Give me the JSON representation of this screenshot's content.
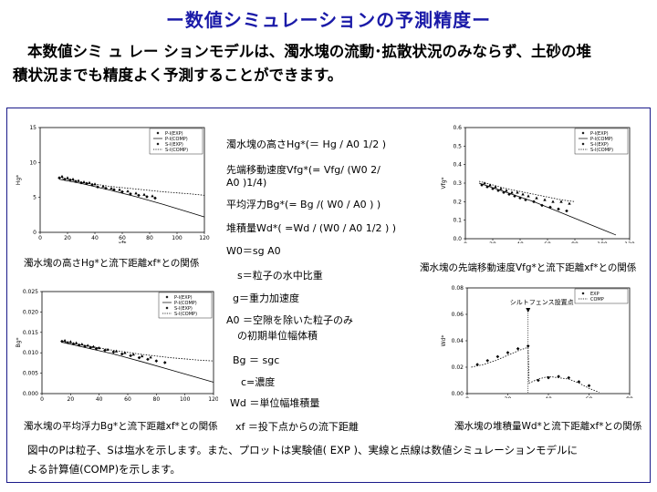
{
  "page": {
    "title": "ー数値シミュレーションの予測精度ー",
    "intro_line1": "本数値シミ ュ レー ションモデルは、濁水塊の流動･拡散状況のみならず、土砂の堆",
    "intro_line2": "積状況までも精度よく予測することができます。"
  },
  "definitions": [
    "濁水塊の高さHg*(＝ Hg / A0 1/2 )",
    "先端移動速度Vfg*(= Vfg/ (W0 2/",
    "A0 )1/4)",
    "平均浮力Bg*(= Bg /( W0 / A0 ) )",
    "堆積量Wd*( =Wd / (W0 / A0 1/2 ) )",
    "W0＝sg A0",
    "s＝粒子の水中比重",
    "g＝重力加速度",
    "A0 ＝空隙を除いた粒子のみ",
    "の初期単位幅体積",
    "Bg ＝ sgc",
    "c=濃度",
    "Wd ＝単位幅堆積量",
    "xf ＝投下点からの流下距離"
  ],
  "captions": {
    "tl": "濁水塊の高さHg*と流下距離xf*との関係",
    "tr": "濁水塊の先端移動速度Vfg*と流下距離xf*との関係",
    "bl": "濁水塊の平均浮力Bg*と流下距離xf*との関係",
    "br": "濁水塊の堆積量Wd*と流下距離xf*との関係"
  },
  "footnote": {
    "line1": "図中のPは粒子、Sは塩水を示します。また、プロットは実験値( EXP )、実線と点線は数値シミュレーションモデルに",
    "line2": "よる計算値(COMP)を示します。"
  },
  "chart_data": [
    {
      "type": "line",
      "ylabel": "Hg*",
      "xlabel": "xf*",
      "xlim": [
        0,
        120
      ],
      "ylim": [
        0,
        15
      ],
      "xticks": [
        "0",
        "20",
        "40",
        "60",
        "80",
        "100",
        "120"
      ],
      "yticks": [
        "0",
        "5",
        "10",
        "15"
      ],
      "legend": [
        "P-l(EXP)",
        "P-l(COMP)",
        "S-l(EXP)",
        "S-l(COMP)"
      ],
      "legend_position": "top-right",
      "series": [
        {
          "name": "P-l(EXP)",
          "style": "diamond",
          "x": [
            14,
            18,
            22,
            26,
            30,
            34,
            38,
            42,
            48,
            54,
            60,
            66,
            72,
            78,
            84
          ],
          "y": [
            7.8,
            7.6,
            7.5,
            7.3,
            7.1,
            7.0,
            6.8,
            6.5,
            6.3,
            6.1,
            5.8,
            5.5,
            5.3,
            5.1,
            4.9
          ]
        },
        {
          "name": "P-l(COMP)",
          "style": "solid",
          "x": [
            14,
            30,
            50,
            70,
            90,
            110,
            120
          ],
          "y": [
            7.6,
            7.0,
            6.1,
            5.1,
            4.0,
            2.8,
            2.2
          ]
        },
        {
          "name": "S-l(EXP)",
          "style": "triangle",
          "x": [
            16,
            20,
            24,
            28,
            32,
            36,
            40,
            46,
            52,
            58,
            64,
            70,
            76,
            82
          ],
          "y": [
            8.0,
            7.8,
            7.6,
            7.4,
            7.2,
            7.1,
            6.9,
            6.6,
            6.3,
            6.1,
            5.9,
            5.6,
            5.4,
            5.2
          ]
        },
        {
          "name": "S-l(COMP)",
          "style": "dotted",
          "x": [
            14,
            30,
            50,
            70,
            90,
            110,
            120
          ],
          "y": [
            7.8,
            7.2,
            6.6,
            6.2,
            5.8,
            5.5,
            5.3
          ]
        }
      ]
    },
    {
      "type": "line",
      "ylabel": "Vfg*",
      "xlabel": "xf*",
      "xlim": [
        0,
        120
      ],
      "ylim": [
        0,
        0.6
      ],
      "xticks": [
        "0",
        "20",
        "40",
        "60",
        "80",
        "100",
        "120"
      ],
      "yticks": [
        "0.0",
        "0.1",
        "0.2",
        "0.3",
        "0.4",
        "0.5",
        "0.6"
      ],
      "legend": [
        "P-l(EXP)",
        "P-l(COMP)",
        "S-l(EXP)",
        "S-l(COMP)"
      ],
      "legend_position": "top-right",
      "series": [
        {
          "name": "P-l(EXP)",
          "style": "diamond",
          "x": [
            12,
            16,
            20,
            24,
            28,
            32,
            36,
            40,
            44,
            50,
            56,
            62,
            68,
            74
          ],
          "y": [
            0.29,
            0.28,
            0.27,
            0.26,
            0.25,
            0.24,
            0.23,
            0.22,
            0.21,
            0.2,
            0.18,
            0.17,
            0.16,
            0.15
          ]
        },
        {
          "name": "P-l(COMP)",
          "style": "solid",
          "x": [
            10,
            30,
            50,
            70,
            90,
            110
          ],
          "y": [
            0.3,
            0.25,
            0.2,
            0.14,
            0.08,
            0.02
          ]
        },
        {
          "name": "S-l(EXP)",
          "style": "triangle",
          "x": [
            14,
            18,
            22,
            26,
            30,
            34,
            38,
            42,
            46,
            52,
            58,
            64,
            70,
            76
          ],
          "y": [
            0.3,
            0.29,
            0.28,
            0.27,
            0.26,
            0.25,
            0.25,
            0.24,
            0.23,
            0.22,
            0.21,
            0.2,
            0.2,
            0.19
          ]
        },
        {
          "name": "S-l(COMP)",
          "style": "dotted",
          "x": [
            10,
            30,
            50,
            70,
            80
          ],
          "y": [
            0.31,
            0.27,
            0.24,
            0.21,
            0.2
          ]
        }
      ]
    },
    {
      "type": "line",
      "ylabel": "Bg*",
      "xlabel": "xf*",
      "xlim": [
        0,
        120
      ],
      "ylim": [
        0,
        0.025
      ],
      "xticks": [
        "0",
        "20",
        "40",
        "60",
        "80",
        "100",
        "120"
      ],
      "yticks": [
        "0.000",
        "0.005",
        "0.010",
        "0.015",
        "0.020",
        "0.025"
      ],
      "legend": [
        "P-l(EXP)",
        "P-l(COMP)",
        "S-l(EXP)",
        "S-l(COMP)"
      ],
      "legend_position": "top-right",
      "series": [
        {
          "name": "P-l(EXP)",
          "style": "diamond",
          "x": [
            14,
            18,
            22,
            26,
            30,
            34,
            38,
            44,
            50,
            56,
            62,
            68,
            74,
            80,
            86
          ],
          "y": [
            0.0128,
            0.0125,
            0.0122,
            0.0119,
            0.0116,
            0.0113,
            0.011,
            0.0106,
            0.0102,
            0.0097,
            0.0093,
            0.0088,
            0.0084,
            0.008,
            0.0076
          ]
        },
        {
          "name": "P-l(COMP)",
          "style": "solid",
          "x": [
            14,
            30,
            50,
            70,
            90,
            110,
            120
          ],
          "y": [
            0.0126,
            0.0113,
            0.0097,
            0.0078,
            0.0058,
            0.0038,
            0.0028
          ]
        },
        {
          "name": "S-l(EXP)",
          "style": "triangle",
          "x": [
            16,
            20,
            24,
            28,
            32,
            36,
            40,
            46,
            52,
            58,
            64,
            70,
            76
          ],
          "y": [
            0.013,
            0.0127,
            0.0124,
            0.0121,
            0.0118,
            0.0115,
            0.0112,
            0.0108,
            0.0104,
            0.01,
            0.0096,
            0.0092,
            0.0089
          ]
        },
        {
          "name": "S-l(COMP)",
          "style": "dotted",
          "x": [
            14,
            30,
            50,
            70,
            90,
            110,
            120
          ],
          "y": [
            0.0128,
            0.0118,
            0.0106,
            0.0096,
            0.0088,
            0.0082,
            0.008
          ]
        }
      ]
    },
    {
      "type": "line",
      "ylabel": "Wd*",
      "xlabel": "xf*",
      "xlim": [
        0,
        80
      ],
      "ylim": [
        0,
        0.08
      ],
      "xticks": [
        "0",
        "20",
        "40",
        "60",
        "80"
      ],
      "yticks": [
        "0.00",
        "0.02",
        "0.04",
        "0.06",
        "0.08"
      ],
      "legend": [
        "EXP",
        "COMP"
      ],
      "legend_position": "top-right",
      "annotation": "シルトフェンス設置点",
      "annotation_x": 30,
      "series": [
        {
          "name": "EXP",
          "style": "diamond",
          "x": [
            5,
            10,
            15,
            20,
            25,
            30,
            35,
            40,
            45,
            50,
            55,
            60
          ],
          "y": [
            0.022,
            0.025,
            0.028,
            0.031,
            0.034,
            0.036,
            0.01,
            0.012,
            0.013,
            0.012,
            0.009,
            0.006
          ]
        },
        {
          "name": "COMP",
          "style": "dotted",
          "x": [
            2,
            8,
            14,
            20,
            26,
            30,
            30.5,
            35,
            40,
            45,
            50,
            55,
            60,
            65
          ],
          "y": [
            0.02,
            0.022,
            0.025,
            0.029,
            0.033,
            0.035,
            0.008,
            0.011,
            0.013,
            0.012,
            0.011,
            0.008,
            0.004,
            0.001
          ]
        }
      ]
    }
  ]
}
